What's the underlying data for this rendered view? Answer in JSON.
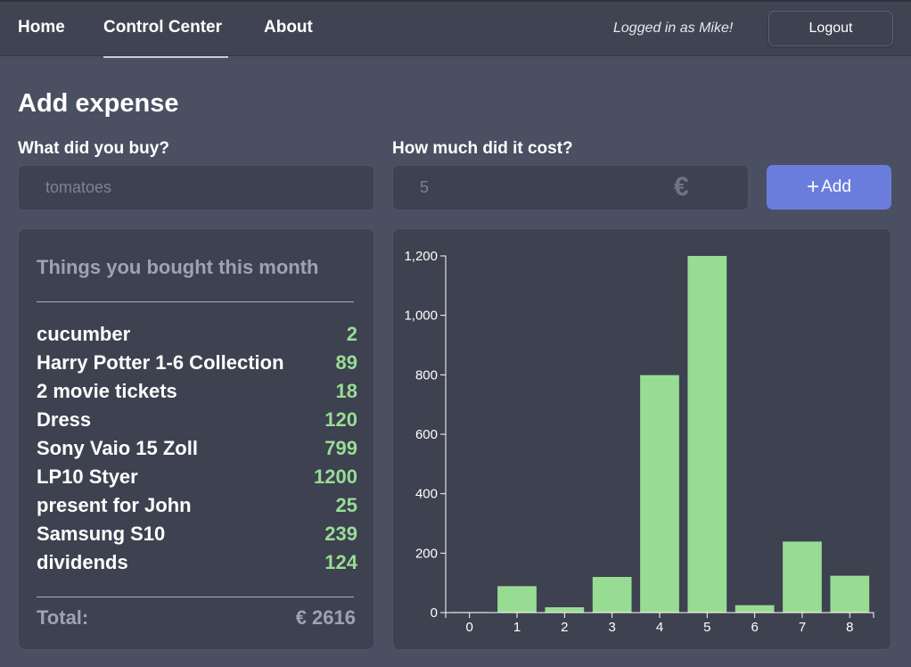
{
  "nav": {
    "home": "Home",
    "control_center": "Control Center",
    "about": "About",
    "logged_in": "Logged in as Mike!",
    "logout": "Logout"
  },
  "form": {
    "heading": "Add expense",
    "what_label": "What did you buy?",
    "what_placeholder": "tomatoes",
    "cost_label": "How much did it cost?",
    "cost_placeholder": "5",
    "currency_icon": "euro-icon",
    "add_plus": "+",
    "add_label": "Add"
  },
  "list": {
    "title": "Things you bought this month",
    "items": [
      {
        "name": "cucumber",
        "amount": "2"
      },
      {
        "name": "Harry Potter 1-6 Collection",
        "amount": "89"
      },
      {
        "name": "2 movie tickets",
        "amount": "18"
      },
      {
        "name": "Dress",
        "amount": "120"
      },
      {
        "name": "Sony Vaio 15 Zoll",
        "amount": "799"
      },
      {
        "name": "LP10 Styer",
        "amount": "1200"
      },
      {
        "name": "present for John",
        "amount": "25"
      },
      {
        "name": "Samsung S10",
        "amount": "239"
      },
      {
        "name": "dividends",
        "amount": "124"
      }
    ],
    "total_label": "Total:",
    "total_value": "€ 2616"
  },
  "colors": {
    "background": "#4a5061",
    "panel": "#3d4150",
    "accent": "#6b7ddc",
    "bar": "#98dc94",
    "muted_text": "#9ea2b1"
  },
  "chart_data": {
    "type": "bar",
    "categories": [
      "0",
      "1",
      "2",
      "3",
      "4",
      "5",
      "6",
      "7",
      "8"
    ],
    "values": [
      2,
      89,
      18,
      120,
      799,
      1200,
      25,
      239,
      124
    ],
    "ylim": [
      0,
      1200
    ],
    "yticks": [
      0,
      200,
      400,
      600,
      800,
      1000,
      1200
    ],
    "ytick_labels": [
      "0",
      "200",
      "400",
      "600",
      "800",
      "1,000",
      "1,200"
    ],
    "title": "",
    "xlabel": "",
    "ylabel": "",
    "grid": false
  }
}
